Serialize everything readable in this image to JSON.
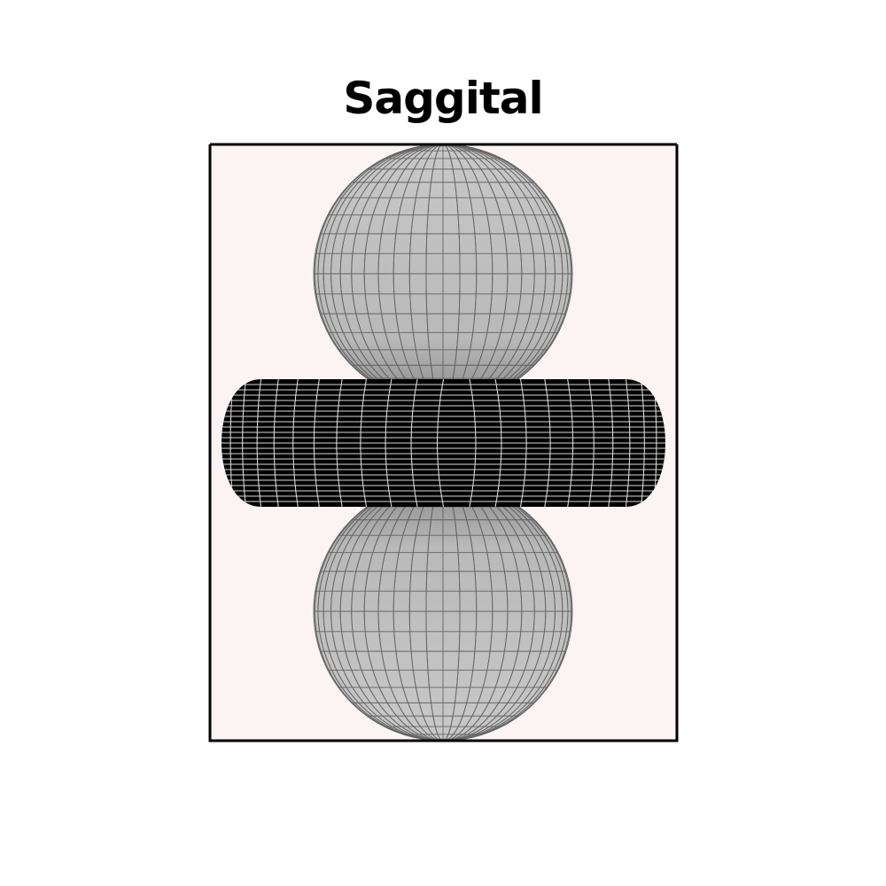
{
  "title": "Saggital",
  "colors": {
    "background": "#ffffff",
    "panel": "#fcf3f3",
    "frame": "#000000",
    "sphere_fill": "#bfbfbf",
    "sphere_mesh": "#555555",
    "torus_fill": "#000000",
    "torus_mesh": "#d8d8d8"
  },
  "shapes": [
    {
      "name": "upper-lobe",
      "kind": "sphere"
    },
    {
      "name": "ring",
      "kind": "torus"
    },
    {
      "name": "lower-lobe",
      "kind": "sphere"
    }
  ]
}
